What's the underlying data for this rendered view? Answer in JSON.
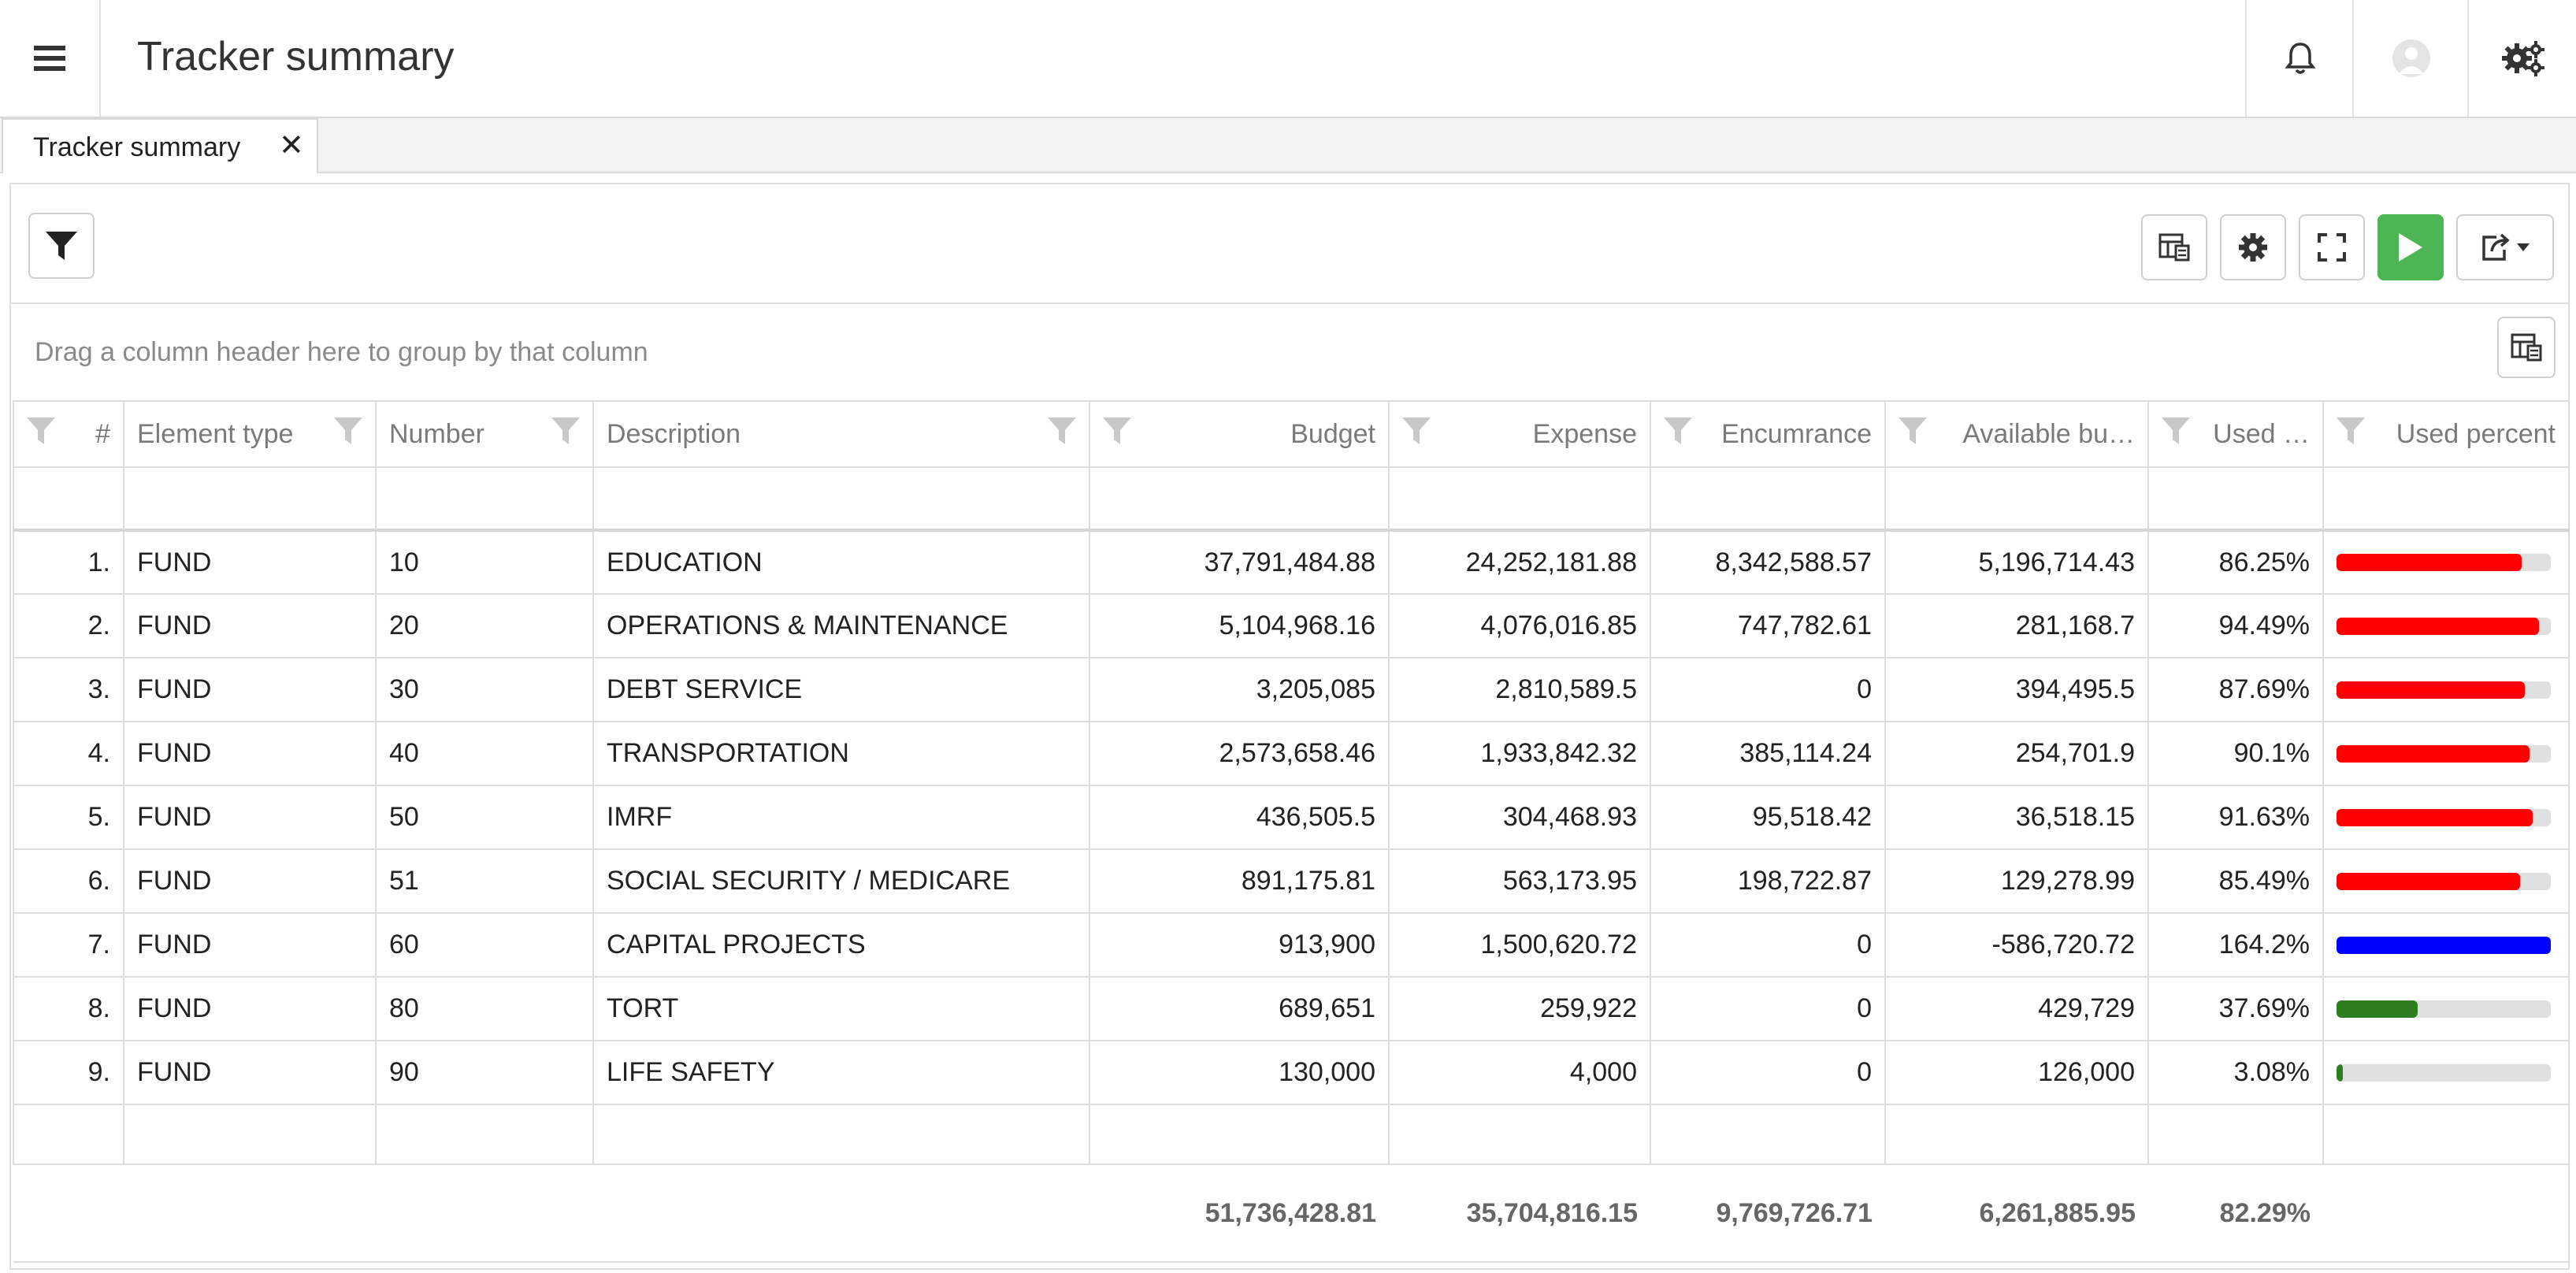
{
  "header": {
    "title": "Tracker summary"
  },
  "tabs": [
    {
      "label": "Tracker summary",
      "close": "✕"
    }
  ],
  "toolbar": {
    "group_hint": "Drag a column header here to group by that column"
  },
  "columns": [
    "#",
    "Element type",
    "Number",
    "Description",
    "Budget",
    "Expense",
    "Encumrance",
    "Available bu…",
    "Used …",
    "Used percent"
  ],
  "rows": [
    {
      "idx": "1.",
      "type": "FUND",
      "number": "10",
      "description": "EDUCATION",
      "budget": "37,791,484.88",
      "expense": "24,252,181.88",
      "encumrance": "8,342,588.57",
      "available": "5,196,714.43",
      "used": "86.25%",
      "used_pct": 86.25,
      "bar_color": "#ff0000"
    },
    {
      "idx": "2.",
      "type": "FUND",
      "number": "20",
      "description": "OPERATIONS & MAINTENANCE",
      "budget": "5,104,968.16",
      "expense": "4,076,016.85",
      "encumrance": "747,782.61",
      "available": "281,168.7",
      "used": "94.49%",
      "used_pct": 94.49,
      "bar_color": "#ff0000"
    },
    {
      "idx": "3.",
      "type": "FUND",
      "number": "30",
      "description": "DEBT SERVICE",
      "budget": "3,205,085",
      "expense": "2,810,589.5",
      "encumrance": "0",
      "available": "394,495.5",
      "used": "87.69%",
      "used_pct": 87.69,
      "bar_color": "#ff0000"
    },
    {
      "idx": "4.",
      "type": "FUND",
      "number": "40",
      "description": "TRANSPORTATION",
      "budget": "2,573,658.46",
      "expense": "1,933,842.32",
      "encumrance": "385,114.24",
      "available": "254,701.9",
      "used": "90.1%",
      "used_pct": 90.1,
      "bar_color": "#ff0000"
    },
    {
      "idx": "5.",
      "type": "FUND",
      "number": "50",
      "description": "IMRF",
      "budget": "436,505.5",
      "expense": "304,468.93",
      "encumrance": "95,518.42",
      "available": "36,518.15",
      "used": "91.63%",
      "used_pct": 91.63,
      "bar_color": "#ff0000"
    },
    {
      "idx": "6.",
      "type": "FUND",
      "number": "51",
      "description": "SOCIAL SECURITY / MEDICARE",
      "budget": "891,175.81",
      "expense": "563,173.95",
      "encumrance": "198,722.87",
      "available": "129,278.99",
      "used": "85.49%",
      "used_pct": 85.49,
      "bar_color": "#ff0000"
    },
    {
      "idx": "7.",
      "type": "FUND",
      "number": "60",
      "description": "CAPITAL PROJECTS",
      "budget": "913,900",
      "expense": "1,500,620.72",
      "encumrance": "0",
      "available": "-586,720.72",
      "used": "164.2%",
      "used_pct": 164.2,
      "bar_color": "#0000ff"
    },
    {
      "idx": "8.",
      "type": "FUND",
      "number": "80",
      "description": "TORT",
      "budget": "689,651",
      "expense": "259,922",
      "encumrance": "0",
      "available": "429,729",
      "used": "37.69%",
      "used_pct": 37.69,
      "bar_color": "#2e7d1f"
    },
    {
      "idx": "9.",
      "type": "FUND",
      "number": "90",
      "description": "LIFE SAFETY",
      "budget": "130,000",
      "expense": "4,000",
      "encumrance": "0",
      "available": "126,000",
      "used": "3.08%",
      "used_pct": 3.08,
      "bar_color": "#2e7d1f"
    }
  ],
  "totals": {
    "budget": "51,736,428.81",
    "expense": "35,704,816.15",
    "encumrance": "9,769,726.71",
    "available": "6,261,885.95",
    "used": "82.29%"
  },
  "colors": {
    "run_button": "#4cb655",
    "over_budget": "#0000ff",
    "high_usage": "#ff0000",
    "low_usage": "#2e7d1f"
  },
  "icons": [
    "menu-icon",
    "bell-icon",
    "user-avatar-icon",
    "cogs-icon",
    "filter-icon",
    "column-chooser-icon",
    "gear-icon",
    "fullscreen-icon",
    "play-icon",
    "export-icon",
    "caret-down-icon"
  ]
}
